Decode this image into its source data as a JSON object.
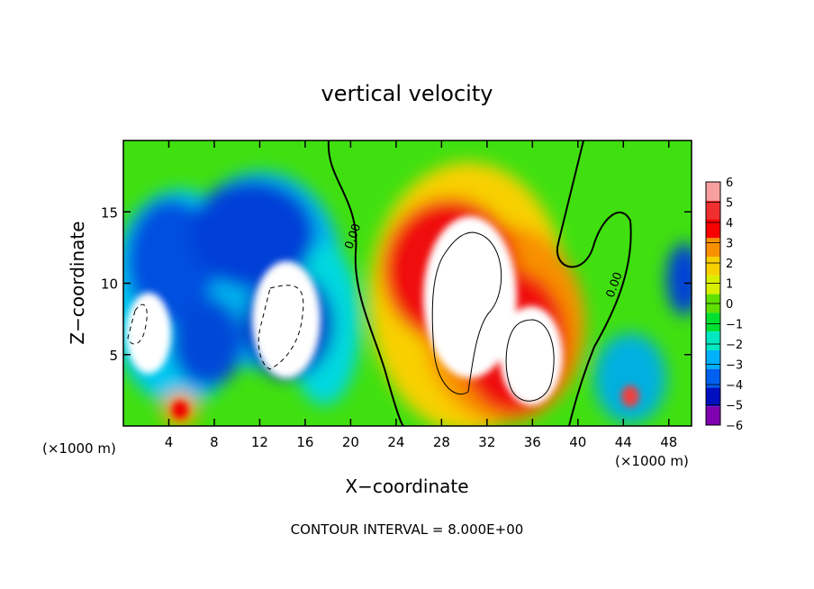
{
  "chart_data": {
    "type": "heatmap",
    "title": "vertical velocity",
    "xlabel": "X−coordinate",
    "ylabel": "Z−coordinate",
    "x_unit_left": "(×1000 m)",
    "x_unit_right": "(×1000 m)",
    "footer": "CONTOUR INTERVAL = 8.000E+00",
    "xlim": [
      0,
      50
    ],
    "ylim": [
      0,
      20
    ],
    "x_ticks": [
      4,
      8,
      12,
      16,
      20,
      24,
      28,
      32,
      36,
      40,
      44,
      48
    ],
    "y_ticks": [
      5,
      10,
      15
    ],
    "colorbar": {
      "levels": [
        "6",
        "5",
        "4",
        "3",
        "2",
        "1",
        "0",
        "−1",
        "−2",
        "−3",
        "−4",
        "−5",
        "−6"
      ],
      "colors": [
        "#f8a0a0",
        "#f03030",
        "#f80000",
        "#f89000",
        "#f8d000",
        "#d8f000",
        "#60e000",
        "#00e030",
        "#00e8c0",
        "#00b0f8",
        "#0060f0",
        "#0010c0",
        "#8000b0"
      ]
    },
    "contour_labels": [
      {
        "text": "0.00",
        "x": 20.5,
        "z": 13.2
      },
      {
        "text": "0.00",
        "x": 43.5,
        "z": 9.8
      }
    ],
    "features": [
      {
        "kind": "updraft",
        "label": "white >6",
        "x": 30.0,
        "z": 9.5
      },
      {
        "kind": "updraft",
        "label": "white >6",
        "x": 35.0,
        "z": 5.0
      },
      {
        "kind": "downdraft",
        "label": "white < -6",
        "x": 2.5,
        "z": 6.0
      },
      {
        "kind": "downdraft",
        "label": "white < -6",
        "x": 14.0,
        "z": 7.0
      }
    ]
  }
}
